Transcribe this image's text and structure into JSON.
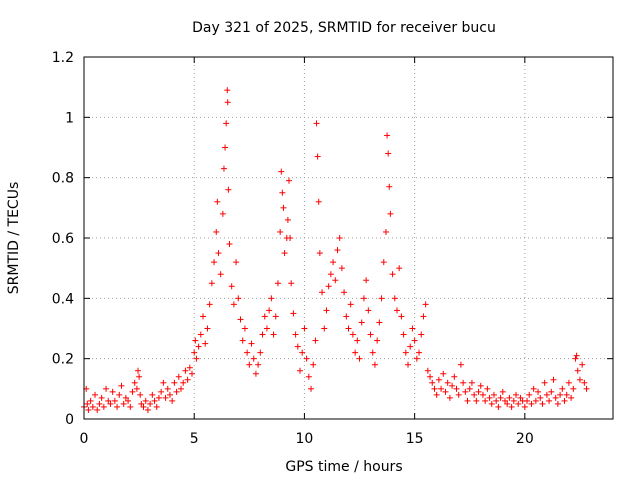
{
  "chart_data": {
    "type": "scatter",
    "title": "Day 321 of 2025, SRMTID for receiver bucu",
    "xlabel": "GPS time / hours",
    "ylabel": "SRMTID / TECUs",
    "xlim": [
      0,
      24
    ],
    "ylim": [
      0,
      1.2
    ],
    "xticks": [
      0,
      5,
      10,
      15,
      20
    ],
    "xtick_labels": [
      "0",
      "5",
      "10",
      "15",
      "20"
    ],
    "yticks": [
      0,
      0.2,
      0.4,
      0.6,
      0.8,
      1,
      1.2
    ],
    "ytick_labels": [
      "0",
      "0.2",
      "0.4",
      "0.6",
      "0.8",
      "1",
      "1.2"
    ],
    "grid": true,
    "marker": "+",
    "color": "#ff0000",
    "series": [
      {
        "name": "SRMTID",
        "points": [
          [
            0.0,
            0.04
          ],
          [
            0.1,
            0.1
          ],
          [
            0.15,
            0.05
          ],
          [
            0.2,
            0.03
          ],
          [
            0.3,
            0.06
          ],
          [
            0.4,
            0.04
          ],
          [
            0.5,
            0.08
          ],
          [
            0.6,
            0.03
          ],
          [
            0.7,
            0.05
          ],
          [
            0.8,
            0.07
          ],
          [
            0.9,
            0.04
          ],
          [
            1.0,
            0.1
          ],
          [
            1.1,
            0.06
          ],
          [
            1.2,
            0.05
          ],
          [
            1.3,
            0.09
          ],
          [
            1.4,
            0.06
          ],
          [
            1.5,
            0.04
          ],
          [
            1.6,
            0.08
          ],
          [
            1.7,
            0.11
          ],
          [
            1.8,
            0.05
          ],
          [
            1.9,
            0.07
          ],
          [
            2.0,
            0.06
          ],
          [
            2.1,
            0.04
          ],
          [
            2.2,
            0.09
          ],
          [
            2.3,
            0.12
          ],
          [
            2.4,
            0.1
          ],
          [
            2.45,
            0.16
          ],
          [
            2.5,
            0.14
          ],
          [
            2.55,
            0.08
          ],
          [
            2.6,
            0.05
          ],
          [
            2.7,
            0.04
          ],
          [
            2.8,
            0.06
          ],
          [
            2.9,
            0.03
          ],
          [
            3.0,
            0.05
          ],
          [
            3.1,
            0.08
          ],
          [
            3.2,
            0.06
          ],
          [
            3.3,
            0.04
          ],
          [
            3.4,
            0.07
          ],
          [
            3.5,
            0.09
          ],
          [
            3.6,
            0.12
          ],
          [
            3.7,
            0.07
          ],
          [
            3.8,
            0.1
          ],
          [
            3.9,
            0.08
          ],
          [
            4.0,
            0.06
          ],
          [
            4.1,
            0.12
          ],
          [
            4.2,
            0.09
          ],
          [
            4.3,
            0.14
          ],
          [
            4.4,
            0.1
          ],
          [
            4.5,
            0.12
          ],
          [
            4.6,
            0.16
          ],
          [
            4.7,
            0.13
          ],
          [
            4.8,
            0.17
          ],
          [
            4.9,
            0.15
          ],
          [
            5.0,
            0.22
          ],
          [
            5.05,
            0.26
          ],
          [
            5.1,
            0.2
          ],
          [
            5.2,
            0.24
          ],
          [
            5.3,
            0.28
          ],
          [
            5.4,
            0.34
          ],
          [
            5.5,
            0.25
          ],
          [
            5.6,
            0.3
          ],
          [
            5.7,
            0.38
          ],
          [
            5.8,
            0.45
          ],
          [
            5.9,
            0.52
          ],
          [
            6.0,
            0.62
          ],
          [
            6.05,
            0.72
          ],
          [
            6.1,
            0.55
          ],
          [
            6.2,
            0.48
          ],
          [
            6.3,
            0.68
          ],
          [
            6.35,
            0.83
          ],
          [
            6.4,
            0.9
          ],
          [
            6.45,
            0.98
          ],
          [
            6.5,
            1.09
          ],
          [
            6.52,
            1.05
          ],
          [
            6.55,
            0.76
          ],
          [
            6.6,
            0.58
          ],
          [
            6.7,
            0.44
          ],
          [
            6.8,
            0.38
          ],
          [
            6.9,
            0.52
          ],
          [
            7.0,
            0.4
          ],
          [
            7.1,
            0.33
          ],
          [
            7.2,
            0.26
          ],
          [
            7.3,
            0.3
          ],
          [
            7.4,
            0.22
          ],
          [
            7.5,
            0.18
          ],
          [
            7.6,
            0.25
          ],
          [
            7.7,
            0.2
          ],
          [
            7.8,
            0.15
          ],
          [
            7.9,
            0.18
          ],
          [
            8.0,
            0.22
          ],
          [
            8.1,
            0.28
          ],
          [
            8.2,
            0.34
          ],
          [
            8.3,
            0.3
          ],
          [
            8.4,
            0.36
          ],
          [
            8.5,
            0.4
          ],
          [
            8.6,
            0.28
          ],
          [
            8.7,
            0.34
          ],
          [
            8.8,
            0.45
          ],
          [
            8.9,
            0.62
          ],
          [
            8.95,
            0.82
          ],
          [
            9.0,
            0.75
          ],
          [
            9.05,
            0.7
          ],
          [
            9.1,
            0.55
          ],
          [
            9.2,
            0.6
          ],
          [
            9.25,
            0.66
          ],
          [
            9.3,
            0.79
          ],
          [
            9.35,
            0.6
          ],
          [
            9.4,
            0.45
          ],
          [
            9.5,
            0.35
          ],
          [
            9.6,
            0.28
          ],
          [
            9.7,
            0.24
          ],
          [
            9.8,
            0.16
          ],
          [
            9.9,
            0.22
          ],
          [
            10.0,
            0.3
          ],
          [
            10.1,
            0.2
          ],
          [
            10.2,
            0.14
          ],
          [
            10.3,
            0.1
          ],
          [
            10.4,
            0.18
          ],
          [
            10.5,
            0.26
          ],
          [
            10.55,
            0.98
          ],
          [
            10.6,
            0.87
          ],
          [
            10.65,
            0.72
          ],
          [
            10.7,
            0.55
          ],
          [
            10.8,
            0.42
          ],
          [
            10.9,
            0.3
          ],
          [
            11.0,
            0.36
          ],
          [
            11.1,
            0.44
          ],
          [
            11.2,
            0.48
          ],
          [
            11.3,
            0.52
          ],
          [
            11.4,
            0.46
          ],
          [
            11.5,
            0.56
          ],
          [
            11.6,
            0.6
          ],
          [
            11.7,
            0.5
          ],
          [
            11.8,
            0.42
          ],
          [
            11.9,
            0.34
          ],
          [
            12.0,
            0.3
          ],
          [
            12.1,
            0.38
          ],
          [
            12.2,
            0.28
          ],
          [
            12.3,
            0.22
          ],
          [
            12.4,
            0.26
          ],
          [
            12.5,
            0.2
          ],
          [
            12.6,
            0.32
          ],
          [
            12.7,
            0.4
          ],
          [
            12.8,
            0.46
          ],
          [
            12.9,
            0.36
          ],
          [
            13.0,
            0.28
          ],
          [
            13.1,
            0.22
          ],
          [
            13.2,
            0.18
          ],
          [
            13.3,
            0.26
          ],
          [
            13.4,
            0.32
          ],
          [
            13.5,
            0.4
          ],
          [
            13.6,
            0.52
          ],
          [
            13.7,
            0.62
          ],
          [
            13.75,
            0.94
          ],
          [
            13.8,
            0.88
          ],
          [
            13.85,
            0.77
          ],
          [
            13.9,
            0.68
          ],
          [
            14.0,
            0.48
          ],
          [
            14.1,
            0.4
          ],
          [
            14.2,
            0.36
          ],
          [
            14.3,
            0.5
          ],
          [
            14.4,
            0.34
          ],
          [
            14.5,
            0.28
          ],
          [
            14.6,
            0.22
          ],
          [
            14.7,
            0.18
          ],
          [
            14.8,
            0.24
          ],
          [
            14.9,
            0.3
          ],
          [
            15.0,
            0.26
          ],
          [
            15.1,
            0.2
          ],
          [
            15.2,
            0.22
          ],
          [
            15.3,
            0.28
          ],
          [
            15.4,
            0.34
          ],
          [
            15.5,
            0.38
          ],
          [
            15.6,
            0.16
          ],
          [
            15.7,
            0.14
          ],
          [
            15.8,
            0.12
          ],
          [
            15.9,
            0.1
          ],
          [
            16.0,
            0.08
          ],
          [
            16.1,
            0.13
          ],
          [
            16.2,
            0.1
          ],
          [
            16.3,
            0.15
          ],
          [
            16.4,
            0.09
          ],
          [
            16.5,
            0.12
          ],
          [
            16.6,
            0.07
          ],
          [
            16.7,
            0.11
          ],
          [
            16.8,
            0.14
          ],
          [
            16.9,
            0.1
          ],
          [
            17.0,
            0.08
          ],
          [
            17.1,
            0.18
          ],
          [
            17.2,
            0.12
          ],
          [
            17.3,
            0.09
          ],
          [
            17.4,
            0.06
          ],
          [
            17.5,
            0.1
          ],
          [
            17.6,
            0.12
          ],
          [
            17.7,
            0.08
          ],
          [
            17.8,
            0.06
          ],
          [
            17.9,
            0.09
          ],
          [
            18.0,
            0.11
          ],
          [
            18.1,
            0.08
          ],
          [
            18.2,
            0.06
          ],
          [
            18.3,
            0.1
          ],
          [
            18.4,
            0.07
          ],
          [
            18.5,
            0.05
          ],
          [
            18.6,
            0.08
          ],
          [
            18.7,
            0.06
          ],
          [
            18.8,
            0.04
          ],
          [
            18.9,
            0.07
          ],
          [
            19.0,
            0.09
          ],
          [
            19.1,
            0.06
          ],
          [
            19.2,
            0.05
          ],
          [
            19.3,
            0.07
          ],
          [
            19.4,
            0.04
          ],
          [
            19.5,
            0.06
          ],
          [
            19.6,
            0.08
          ],
          [
            19.7,
            0.05
          ],
          [
            19.8,
            0.07
          ],
          [
            19.9,
            0.06
          ],
          [
            20.0,
            0.04
          ],
          [
            20.1,
            0.06
          ],
          [
            20.2,
            0.08
          ],
          [
            20.3,
            0.05
          ],
          [
            20.4,
            0.1
          ],
          [
            20.5,
            0.06
          ],
          [
            20.6,
            0.09
          ],
          [
            20.7,
            0.07
          ],
          [
            20.8,
            0.05
          ],
          [
            20.9,
            0.12
          ],
          [
            21.0,
            0.08
          ],
          [
            21.1,
            0.06
          ],
          [
            21.2,
            0.09
          ],
          [
            21.3,
            0.13
          ],
          [
            21.4,
            0.07
          ],
          [
            21.5,
            0.05
          ],
          [
            21.6,
            0.08
          ],
          [
            21.7,
            0.1
          ],
          [
            21.8,
            0.06
          ],
          [
            21.9,
            0.08
          ],
          [
            22.0,
            0.12
          ],
          [
            22.1,
            0.07
          ],
          [
            22.2,
            0.1
          ],
          [
            22.3,
            0.2
          ],
          [
            22.35,
            0.21
          ],
          [
            22.4,
            0.16
          ],
          [
            22.5,
            0.13
          ],
          [
            22.6,
            0.18
          ],
          [
            22.7,
            0.12
          ],
          [
            22.8,
            0.1
          ]
        ]
      }
    ]
  }
}
